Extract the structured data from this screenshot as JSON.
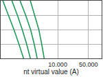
{
  "chart_data": {
    "type": "line",
    "x_label": "nt virtual value (A)",
    "log": true,
    "grid": true,
    "tick_labels": "x",
    "xlim": [
      0.5,
      100
    ],
    "ylim": [
      0.01,
      100
    ],
    "xticks": [
      {
        "value": 10,
        "label": "10.000"
      },
      {
        "value": 50,
        "label": "50.000"
      }
    ],
    "yticks": [
      0.01,
      0.1,
      1,
      10,
      100
    ],
    "series": [
      {
        "color": "#1f9a5a",
        "line_style": "solid",
        "x": [
          0.56,
          0.75,
          1.0,
          1.3,
          1.66
        ],
        "values": [
          100,
          10,
          1,
          0.1,
          0.01
        ]
      },
      {
        "color": "#1f9a5a",
        "line_style": "solid",
        "x": [
          0.9,
          1.2,
          1.55,
          1.95,
          2.37
        ],
        "values": [
          100,
          10,
          1,
          0.1,
          0.01
        ]
      },
      {
        "color": "#1f9a5a",
        "line_style": "solid",
        "x": [
          1.38,
          1.85,
          2.4,
          2.9,
          3.4
        ],
        "values": [
          100,
          10,
          1,
          0.1,
          0.01
        ]
      },
      {
        "color": "#1f9a5a",
        "line_style": "solid",
        "x": [
          2.37,
          3.0,
          3.7,
          4.3,
          4.9
        ],
        "values": [
          100,
          10,
          1,
          0.1,
          0.01
        ]
      }
    ]
  }
}
